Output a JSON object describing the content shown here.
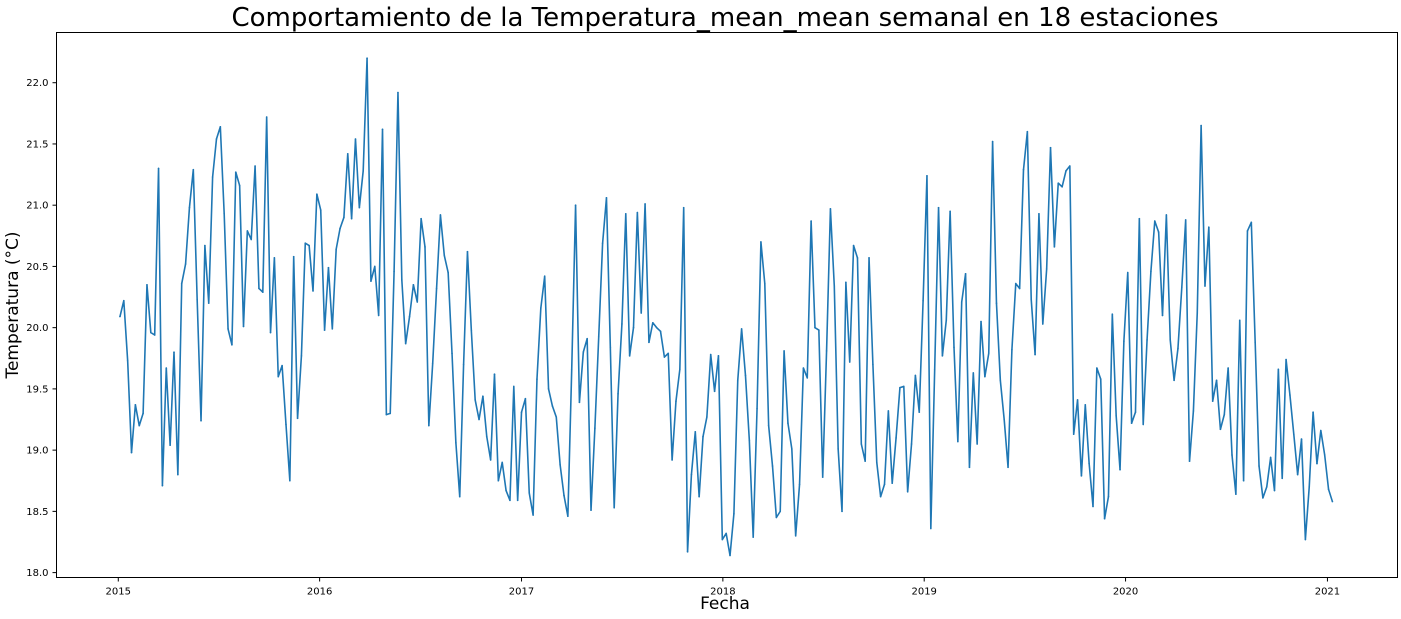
{
  "chart_data": {
    "type": "line",
    "title": "Comportamiento de la Temperatura_mean_mean semanal en 18 estaciones",
    "xlabel": "Fecha",
    "ylabel": "Temperatura (°C)",
    "xlim": [
      "2014-09-11",
      "2021-05-08"
    ],
    "ylim": [
      17.96,
      22.41
    ],
    "x_ticks": [
      "2015-01-01",
      "2016-01-01",
      "2017-01-01",
      "2018-01-01",
      "2019-01-01",
      "2020-01-01",
      "2021-01-01"
    ],
    "x_tick_labels": [
      "2015",
      "2016",
      "2017",
      "2018",
      "2019",
      "2020",
      "2021"
    ],
    "y_ticks": [
      18.0,
      18.5,
      19.0,
      19.5,
      20.0,
      20.5,
      21.0,
      21.5,
      22.0
    ],
    "y_tick_labels": [
      "18.0",
      "18.5",
      "19.0",
      "19.5",
      "20.0",
      "20.5",
      "21.0",
      "21.5",
      "22.0"
    ],
    "grid": false,
    "legend": "none",
    "series": [
      {
        "color": "#1f77b4",
        "x_start": "2015-01-04",
        "x_step_days": 7,
        "values": [
          20.09,
          20.22,
          19.73,
          18.98,
          19.37,
          19.2,
          19.3,
          20.35,
          19.96,
          19.94,
          21.3,
          18.71,
          19.67,
          19.04,
          19.8,
          18.8,
          20.36,
          20.52,
          20.98,
          21.29,
          20.23,
          19.24,
          20.67,
          20.2,
          21.23,
          21.54,
          21.64,
          20.93,
          19.99,
          19.86,
          21.27,
          21.16,
          20.01,
          20.79,
          20.72,
          21.32,
          20.32,
          20.29,
          21.72,
          19.96,
          20.57,
          19.6,
          19.69,
          19.21,
          18.75,
          20.58,
          19.26,
          19.77,
          20.69,
          20.67,
          20.3,
          21.09,
          20.96,
          19.98,
          20.49,
          19.99,
          20.64,
          20.81,
          20.9,
          21.42,
          20.89,
          21.54,
          20.98,
          21.28,
          22.2,
          20.38,
          20.5,
          20.1,
          21.62,
          19.29,
          19.3,
          20.46,
          21.92,
          20.39,
          19.87,
          20.09,
          20.35,
          20.21,
          20.89,
          20.66,
          19.2,
          19.71,
          20.32,
          20.92,
          20.59,
          20.45,
          19.79,
          19.06,
          18.62,
          19.7,
          20.62,
          19.98,
          19.41,
          19.25,
          19.44,
          19.11,
          18.92,
          19.62,
          18.75,
          18.9,
          18.67,
          18.59,
          19.52,
          18.59,
          19.31,
          19.42,
          18.65,
          18.47,
          19.58,
          20.16,
          20.42,
          19.5,
          19.36,
          19.27,
          18.88,
          18.63,
          18.46,
          19.66,
          21.0,
          19.39,
          19.8,
          19.91,
          18.51,
          19.18,
          19.93,
          20.69,
          21.06,
          19.84,
          18.53,
          19.46,
          20.03,
          20.93,
          19.77,
          20.0,
          20.94,
          20.12,
          21.01,
          19.88,
          20.04,
          20.0,
          19.97,
          19.76,
          19.79,
          18.92,
          19.4,
          19.66,
          20.98,
          18.17,
          18.8,
          19.15,
          18.62,
          19.11,
          19.27,
          19.78,
          19.48,
          19.77,
          18.27,
          18.32,
          18.14,
          18.48,
          19.57,
          19.99,
          19.61,
          19.08,
          18.29,
          19.34,
          20.7,
          20.36,
          19.2,
          18.87,
          18.45,
          18.5,
          19.81,
          19.22,
          19.01,
          18.3,
          18.72,
          19.67,
          19.59,
          20.87,
          20.0,
          19.98,
          18.78,
          19.81,
          20.97,
          20.34,
          19.01,
          18.5,
          20.37,
          19.72,
          20.67,
          20.57,
          19.05,
          18.91,
          20.57,
          19.7,
          18.9,
          18.62,
          18.72,
          19.32,
          18.73,
          19.1,
          19.51,
          19.52,
          18.66,
          19.05,
          19.61,
          19.31,
          20.22,
          21.24,
          18.36,
          19.66,
          20.98,
          19.77,
          20.06,
          20.95,
          19.84,
          19.07,
          20.21,
          20.44,
          18.86,
          19.63,
          19.05,
          20.05,
          19.6,
          19.79,
          21.52,
          20.2,
          19.57,
          19.25,
          18.86,
          19.82,
          20.36,
          20.32,
          21.29,
          21.6,
          20.23,
          19.78,
          20.93,
          20.03,
          20.48,
          21.47,
          20.66,
          21.18,
          21.15,
          21.28,
          21.32,
          19.13,
          19.41,
          18.79,
          19.37,
          18.89,
          18.54,
          19.67,
          19.58,
          18.44,
          18.62,
          20.11,
          19.28,
          18.84,
          19.89,
          20.45,
          19.22,
          19.31,
          20.89,
          19.21,
          19.9,
          20.46,
          20.87,
          20.78,
          20.1,
          20.92,
          19.9,
          19.57,
          19.83,
          20.33,
          20.88,
          18.91,
          19.32,
          20.12,
          21.65,
          20.34,
          20.82,
          19.4,
          19.57,
          19.17,
          19.29,
          19.67,
          18.96,
          18.64,
          20.06,
          18.75,
          20.79,
          20.86,
          19.88,
          18.87,
          18.61,
          18.7,
          18.94,
          18.67,
          19.66,
          18.77,
          19.74,
          19.45,
          19.13,
          18.8,
          19.09,
          18.27,
          18.7,
          19.31,
          18.89,
          19.16,
          18.96,
          18.68,
          18.58
        ]
      }
    ]
  }
}
